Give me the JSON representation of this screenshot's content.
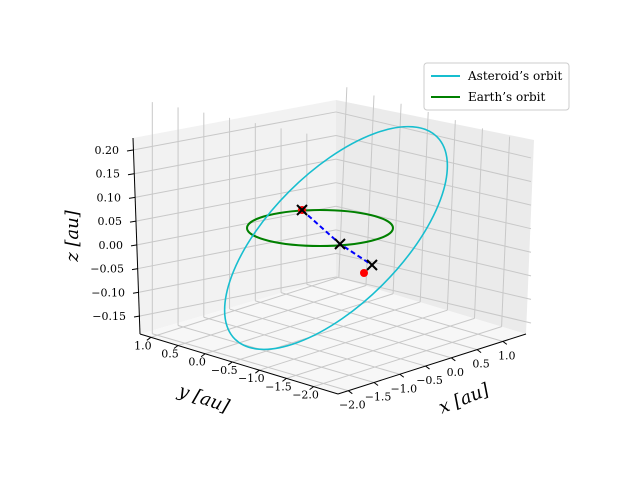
{
  "chart_data": {
    "type": "line3d",
    "title": "",
    "xlabel": "x [au]",
    "ylabel": "y [au]",
    "zlabel": "z [au]",
    "x_ticks": [
      "−2.0",
      "−1.5",
      "−1.0",
      "−0.5",
      "0.0",
      "0.5",
      "1.0"
    ],
    "y_ticks": [
      "1.0",
      "0.5",
      "0.0",
      "−0.5",
      "−1.0",
      "−1.5",
      "−2.0"
    ],
    "z_ticks": [
      "−0.15",
      "−0.10",
      "−0.05",
      "0.00",
      "0.05",
      "0.10",
      "0.15",
      "0.20"
    ],
    "grid": true,
    "legend_position": "top-right",
    "series": [
      {
        "name": "Asteroid’s orbit",
        "color": "#17becf",
        "kind": "ellipse"
      },
      {
        "name": "Earth’s orbit",
        "color": "#008000",
        "kind": "ellipse"
      }
    ],
    "markers": {
      "cross_color": "#000000",
      "dot_color": "#ff0000",
      "dashed_line_color": "#0000ff"
    }
  }
}
